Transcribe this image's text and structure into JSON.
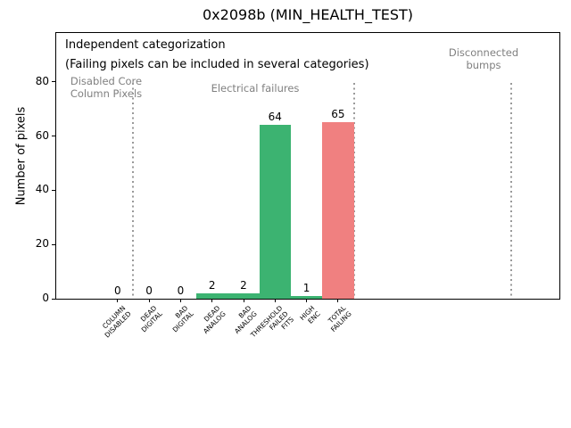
{
  "chart_data": {
    "type": "bar",
    "title": "0x2098b (MIN_HEALTH_TEST)",
    "xlabel": "",
    "ylabel": "Number of pixels",
    "categories": [
      "COLUMN\nDISABLED",
      "DEAD\nDIGITAL",
      "BAD\nDIGITAL",
      "DEAD\nANALOG",
      "BAD\nANALOG",
      "THRESHOLD\nFAILED\nFITS",
      "HIGH\nENC",
      "TOTAL\nFAILING"
    ],
    "values": [
      0,
      0,
      0,
      2,
      2,
      64,
      1,
      65
    ],
    "bar_colors": [
      "#3cb371",
      "#3cb371",
      "#3cb371",
      "#3cb371",
      "#3cb371",
      "#3cb371",
      "#3cb371",
      "#f08080"
    ],
    "yticks": [
      0,
      20,
      40,
      60,
      80
    ],
    "ylim": [
      0,
      98
    ],
    "grid": false,
    "legend": false,
    "separator_lines_x": [
      0.5,
      7.5,
      12.5
    ],
    "annotations": {
      "note_line1": "Independent categorization",
      "note_line2": "(Failing pixels can be included in several categories)",
      "disabled_core": "Disabled Core\nColumn Pixels",
      "electrical": "Electrical failures",
      "disconnected": "Disconnected\nbumps"
    },
    "colors": {
      "bar_green": "#3cb371",
      "bar_red": "#f08080",
      "annotation_gray": "#808080",
      "separator_gray": "#999999",
      "axes": "#000000",
      "background": "#ffffff"
    }
  }
}
